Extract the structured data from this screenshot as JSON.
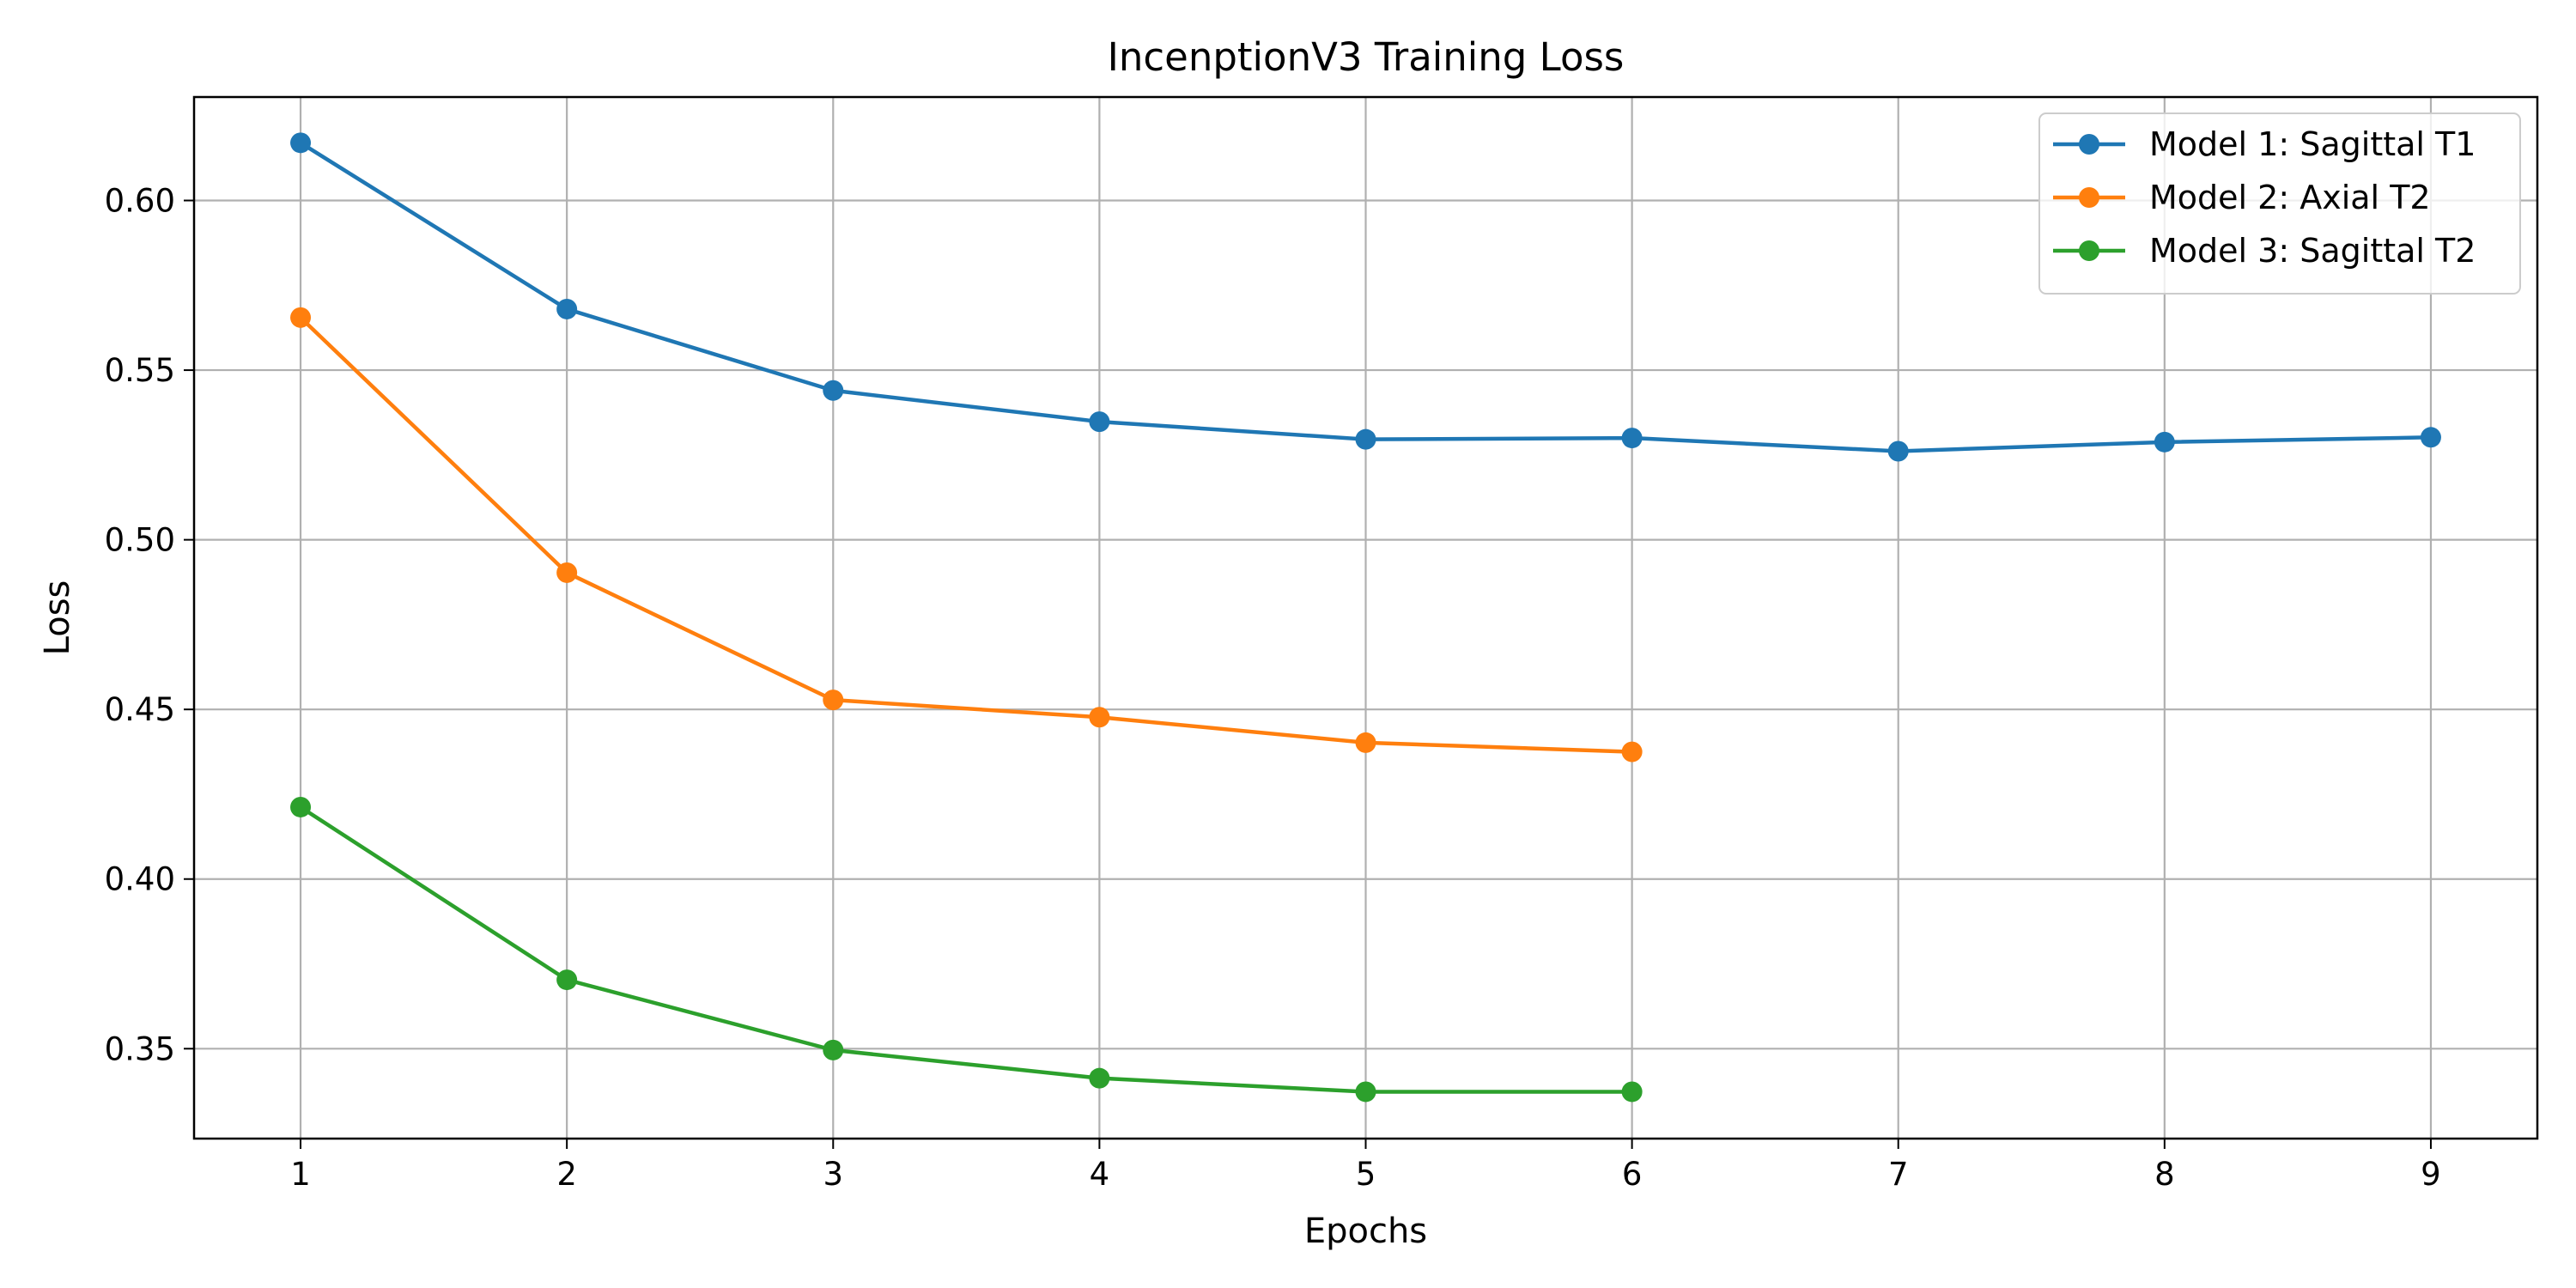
{
  "chart_data": {
    "type": "line",
    "title": "IncenptionV3 Training Loss",
    "xlabel": "Epochs",
    "ylabel": "Loss",
    "xlim": [
      0.6,
      9.4
    ],
    "ylim": [
      0.3235,
      0.6305
    ],
    "x_ticks": [
      "1",
      "2",
      "3",
      "4",
      "5",
      "6",
      "7",
      "8",
      "9"
    ],
    "y_ticks": [
      "0.35",
      "0.40",
      "0.45",
      "0.50",
      "0.55",
      "0.60"
    ],
    "grid": true,
    "legend_position": "top-right",
    "series": [
      {
        "name": "Model 1: Sagittal T1",
        "color": "#1f77b4",
        "x": [
          1,
          2,
          3,
          4,
          5,
          6,
          7,
          8,
          9
        ],
        "values": [
          0.617,
          0.568,
          0.544,
          0.5348,
          0.5296,
          0.53,
          0.5261,
          0.5288,
          0.5302
        ]
      },
      {
        "name": "Model 2: Axial T2",
        "color": "#ff7f0e",
        "x": [
          1,
          2,
          3,
          4,
          5,
          6
        ],
        "values": [
          0.5655,
          0.4903,
          0.4528,
          0.4477,
          0.4402,
          0.4375
        ]
      },
      {
        "name": "Model 3: Sagittal T2",
        "color": "#2ca02c",
        "x": [
          1,
          2,
          3,
          4,
          5,
          6
        ],
        "values": [
          0.4212,
          0.3703,
          0.3496,
          0.3413,
          0.3373,
          0.3373
        ]
      }
    ]
  }
}
